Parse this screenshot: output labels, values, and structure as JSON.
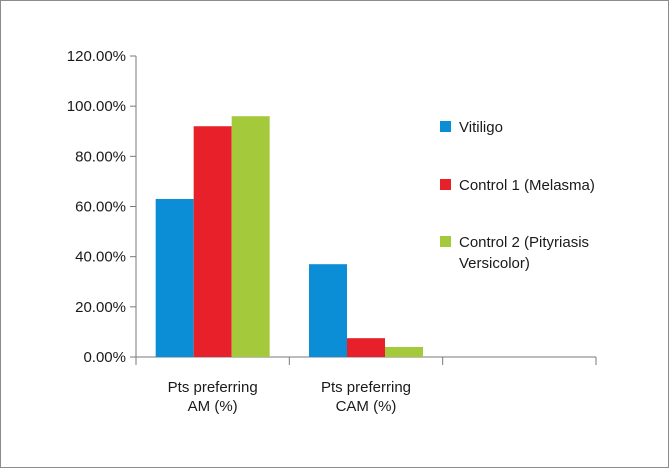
{
  "chart_data": {
    "type": "bar",
    "categories": [
      [
        "Pts preferring",
        "AM (%)"
      ],
      [
        "Pts preferring",
        "CAM (%)"
      ],
      [
        "",
        ""
      ]
    ],
    "series": [
      {
        "name": "Vitiligo",
        "color": "#0b8ed6",
        "values": [
          0.63,
          0.37,
          null
        ]
      },
      {
        "name": "Control 1 (Melasma)",
        "color": "#e8202a",
        "values": [
          0.92,
          0.075,
          null
        ]
      },
      {
        "name": "Control 2 (Pityriasis Versicolor)",
        "name_lines": [
          "Control 2 (Pityriasis",
          "Versicolor)"
        ],
        "color": "#a4c93a",
        "values": [
          0.96,
          0.04,
          null
        ]
      }
    ],
    "yticks": [
      "0.00%",
      "20.00%",
      "40.00%",
      "60.00%",
      "80.00%",
      "100.00%",
      "120.00%"
    ],
    "ylim": [
      0,
      1.2
    ],
    "title": "",
    "xlabel": "",
    "ylabel": "",
    "grid": false,
    "legend_position": "right"
  }
}
